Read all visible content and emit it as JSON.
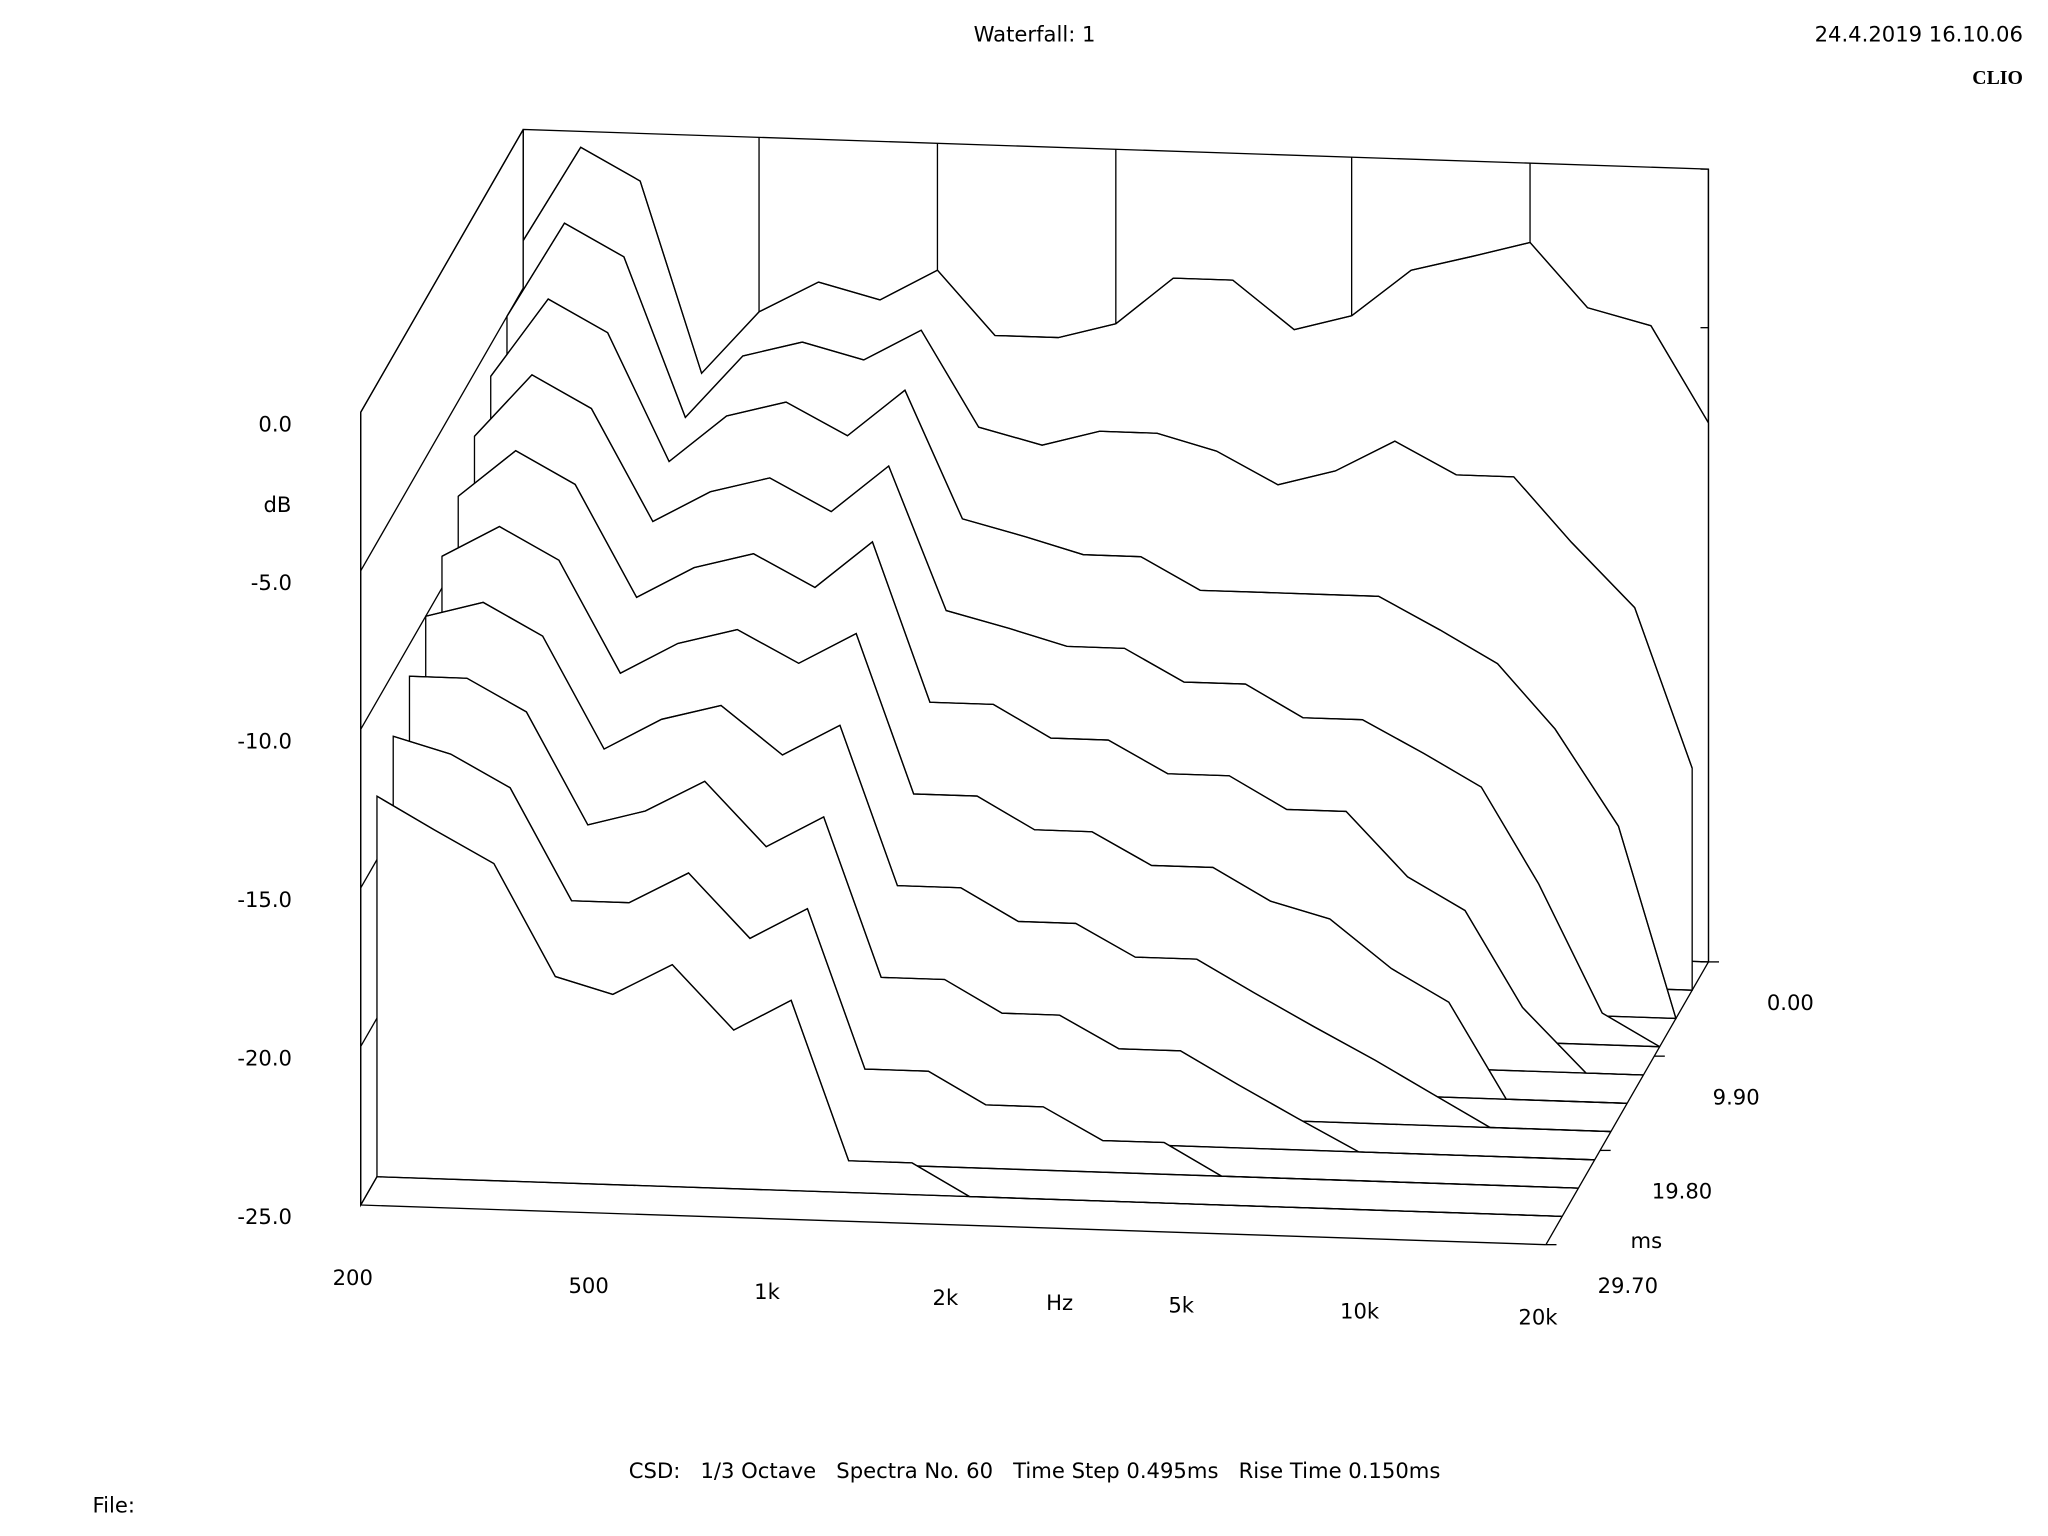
{
  "chart_data": {
    "type": "waterfall",
    "title": "Waterfall: 1",
    "timestamp": "24.4.2019 16.10.06",
    "brand": "CLIO",
    "footer": "CSD:   1/3 Octave   Spectra No. 60   Time Step 0.495ms   Rise Time 0.150ms",
    "file_label": "File:",
    "x_label": "Hz",
    "y_label": "dB",
    "z_label": "ms",
    "color": "#000000",
    "x": [
      200,
      250,
      315,
      400,
      500,
      630,
      800,
      1000,
      1250,
      1600,
      2000,
      2500,
      3150,
      4000,
      5000,
      6300,
      8000,
      10000,
      12500,
      16000,
      20000
    ],
    "z": [
      0,
      2.97,
      5.94,
      8.91,
      11.88,
      14.85,
      17.82,
      20.79,
      23.76,
      26.73
    ],
    "series": [
      {
        "values": [
          -3.5,
          -0.5,
          -1.5,
          -7.5,
          -5.5,
          -4.5,
          -5,
          -4,
          -6,
          -6,
          -5.5,
          -4,
          -4,
          -5.5,
          -5,
          -3.5,
          -3,
          -2.5,
          -4.5,
          -5,
          -8
        ]
      },
      {
        "values": [
          -5,
          -2,
          -3,
          -8,
          -6,
          -5.5,
          -6,
          -5,
          -8,
          -8.5,
          -8,
          -8,
          -8.5,
          -9.5,
          -9,
          -8,
          -9,
          -9,
          -11,
          -13,
          -18
        ]
      },
      {
        "values": [
          -6,
          -3.5,
          -4.5,
          -8.5,
          -7,
          -6.5,
          -7.5,
          -6,
          -10,
          -10.5,
          -11,
          -11,
          -12,
          -12,
          -12,
          -12,
          -13,
          -14,
          -16,
          -19,
          -25
        ]
      },
      {
        "values": [
          -7,
          -5,
          -6,
          -9.5,
          -8.5,
          -8,
          -9,
          -7.5,
          -12,
          -12.5,
          -13,
          -13,
          -14,
          -14,
          -15,
          -15,
          -16,
          -17,
          -20,
          -24,
          -25
        ]
      },
      {
        "values": [
          -8,
          -6.5,
          -7.5,
          -11,
          -10,
          -9.5,
          -10.5,
          -9,
          -14,
          -14,
          -15,
          -15,
          -16,
          -16,
          -17,
          -17,
          -19,
          -20,
          -23,
          -25,
          -25
        ]
      },
      {
        "values": [
          -9,
          -8,
          -9,
          -12.5,
          -11.5,
          -11,
          -12,
          -11,
          -16,
          -16,
          -17,
          -17,
          -18,
          -18,
          -19,
          -19.5,
          -21,
          -22,
          -25,
          -25,
          -25
        ]
      },
      {
        "values": [
          -10,
          -9.5,
          -10.5,
          -14,
          -13,
          -12.5,
          -14,
          -13,
          -18,
          -18,
          -19,
          -19,
          -20,
          -20,
          -21,
          -22,
          -23,
          -24,
          -25,
          -25,
          -25
        ]
      },
      {
        "values": [
          -11,
          -11,
          -12,
          -15.5,
          -15,
          -14,
          -16,
          -15,
          -20,
          -20,
          -21,
          -21,
          -22,
          -22,
          -23,
          -24,
          -25,
          -25,
          -25,
          -25,
          -25
        ]
      },
      {
        "values": [
          -12,
          -12.5,
          -13.5,
          -17,
          -17,
          -16,
          -18,
          -17,
          -22,
          -22,
          -23,
          -23,
          -24,
          -24,
          -25,
          -25,
          -25,
          -25,
          -25,
          -25,
          -25
        ]
      },
      {
        "values": [
          -13,
          -14,
          -15,
          -18.5,
          -19,
          -18,
          -20,
          -19,
          -24,
          -24,
          -25,
          -25,
          -25,
          -25,
          -25,
          -25,
          -25,
          -25,
          -25,
          -25,
          -25
        ]
      }
    ],
    "xlim": [
      200,
      20000
    ],
    "xticks": [
      200,
      500,
      {
        "value": 1000,
        "label": "1k"
      },
      {
        "value": 2000,
        "label": "2k"
      },
      {
        "value": 5000,
        "label": "5k"
      },
      {
        "value": 10000,
        "label": "10k"
      },
      {
        "value": 20000,
        "label": "20k"
      }
    ],
    "xscale": "log",
    "ylim": [
      -25,
      0
    ],
    "yticks": [
      {
        "value": 0,
        "label": "0.0"
      },
      {
        "value": -5,
        "label": "-5.0"
      },
      {
        "value": -10,
        "label": "-10.0"
      },
      {
        "value": -15,
        "label": "-15.0"
      },
      {
        "value": -20,
        "label": "-20.0"
      },
      {
        "value": -25,
        "label": "-25.0"
      }
    ],
    "zlim": [
      0,
      29.7
    ],
    "zticks": [
      {
        "value": 0,
        "label": "0.00"
      },
      {
        "value": 9.9,
        "label": "9.90"
      },
      {
        "value": 19.8,
        "label": "19.80"
      },
      {
        "value": 29.7,
        "label": "29.70"
      }
    ]
  }
}
